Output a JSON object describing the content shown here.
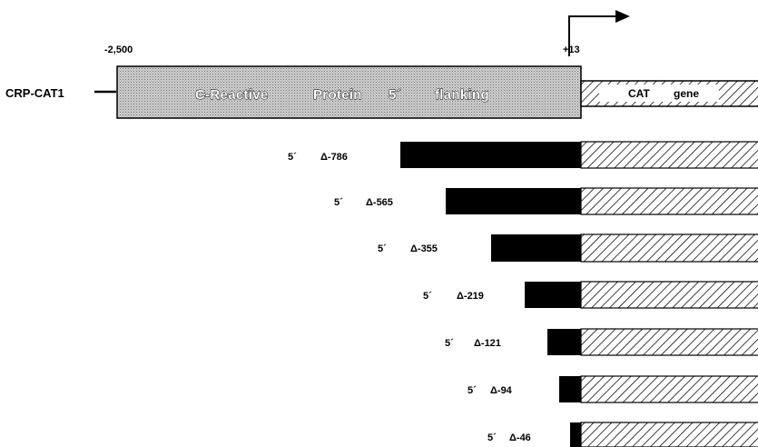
{
  "construct": {
    "name": "CRP-CAT1",
    "start_label": "-2,500",
    "end_label": "+13",
    "promoter_words": [
      "C-Reactive",
      "Protein",
      "5´",
      "flanking"
    ],
    "reporter_words": [
      "CAT",
      "gene"
    ]
  },
  "deletions": [
    {
      "prime": "5´",
      "label": "Δ-786",
      "value": -786
    },
    {
      "prime": "5´",
      "label": "Δ-565",
      "value": -565
    },
    {
      "prime": "5´",
      "label": "Δ-355",
      "value": -355
    },
    {
      "prime": "5´",
      "label": "Δ-219",
      "value": -219
    },
    {
      "prime": "5´",
      "label": "Δ-121",
      "value": -121
    },
    {
      "prime": "5´",
      "label": "Δ-94",
      "value": -94
    },
    {
      "prime": "5´",
      "label": "Δ-46",
      "value": -46
    }
  ]
}
